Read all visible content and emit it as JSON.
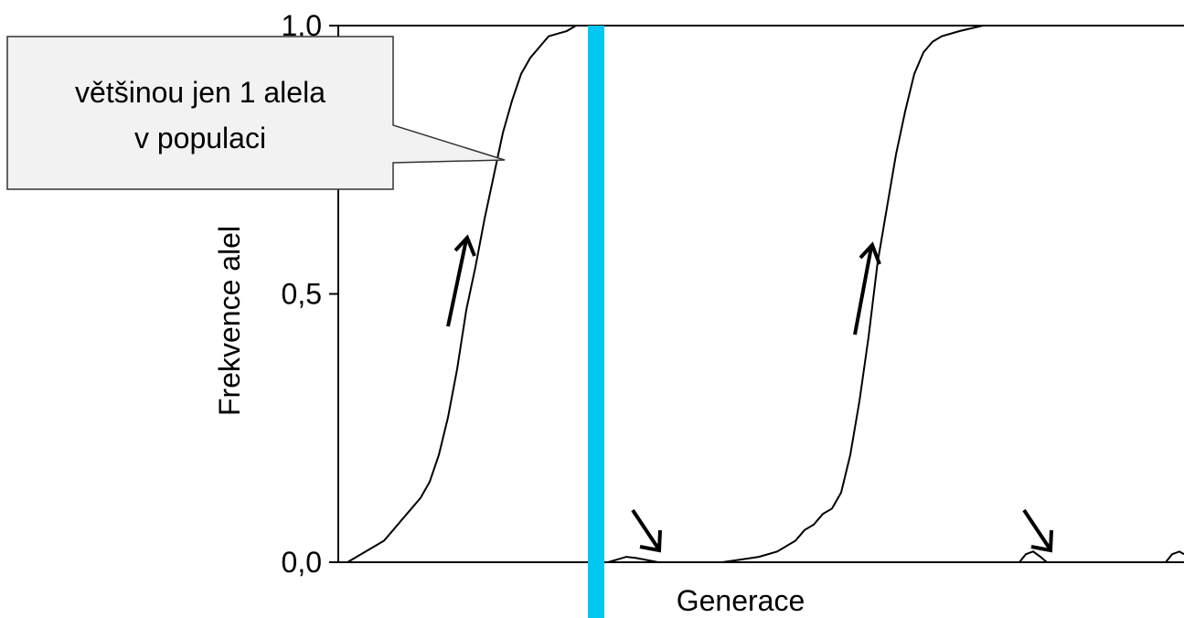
{
  "chart_data": {
    "type": "line",
    "xlabel": "Generace",
    "ylabel": "Frekvence alel",
    "annotations": [
      [
        "většinou jen 1 alela",
        "v populaci"
      ]
    ],
    "xlim": [
      0,
      925
    ],
    "ylim": [
      0,
      1
    ],
    "yticks": [
      {
        "value": 0,
        "label": "0,0"
      },
      {
        "value": 0.5,
        "label": "0,5"
      },
      {
        "value": 1,
        "label": "1,0"
      }
    ],
    "series": [
      {
        "color": "#000000",
        "x": [
          0,
          10,
          20,
          30,
          40,
          50,
          60,
          70,
          80,
          90,
          100,
          110,
          120,
          130,
          140,
          150,
          160,
          170,
          180,
          190,
          200,
          210,
          220,
          230,
          240,
          250,
          260,
          267
        ],
        "values": [
          0,
          0,
          0.01,
          0.02,
          0.03,
          0.04,
          0.06,
          0.08,
          0.1,
          0.12,
          0.15,
          0.2,
          0.27,
          0.36,
          0.47,
          0.55,
          0.64,
          0.72,
          0.8,
          0.86,
          0.91,
          0.94,
          0.96,
          0.98,
          0.985,
          0.99,
          1,
          1
        ]
      },
      {
        "color": "#000000",
        "x": [
          295,
          305,
          315,
          325,
          335,
          350
        ],
        "values": [
          0,
          0.005,
          0.01,
          0.008,
          0.005,
          0
        ]
      },
      {
        "color": "#000000",
        "x": [
          410,
          420,
          440,
          460,
          480,
          500,
          510,
          520,
          530,
          540,
          550,
          560,
          570,
          580,
          590,
          600,
          610,
          620,
          630,
          640,
          650,
          660,
          680,
          705
        ],
        "values": [
          0,
          0,
          0.005,
          0.01,
          0.02,
          0.04,
          0.06,
          0.07,
          0.09,
          0.1,
          0.13,
          0.2,
          0.3,
          0.42,
          0.56,
          0.66,
          0.76,
          0.84,
          0.91,
          0.95,
          0.97,
          0.98,
          0.99,
          1
        ]
      },
      {
        "color": "#000000",
        "x": [
          745,
          752,
          760,
          768,
          775
        ],
        "values": [
          0,
          0.015,
          0.02,
          0.01,
          0
        ]
      },
      {
        "color": "#000000",
        "x": [
          905,
          912,
          920,
          925
        ],
        "values": [
          0,
          0.015,
          0.02,
          0.015
        ]
      }
    ]
  }
}
